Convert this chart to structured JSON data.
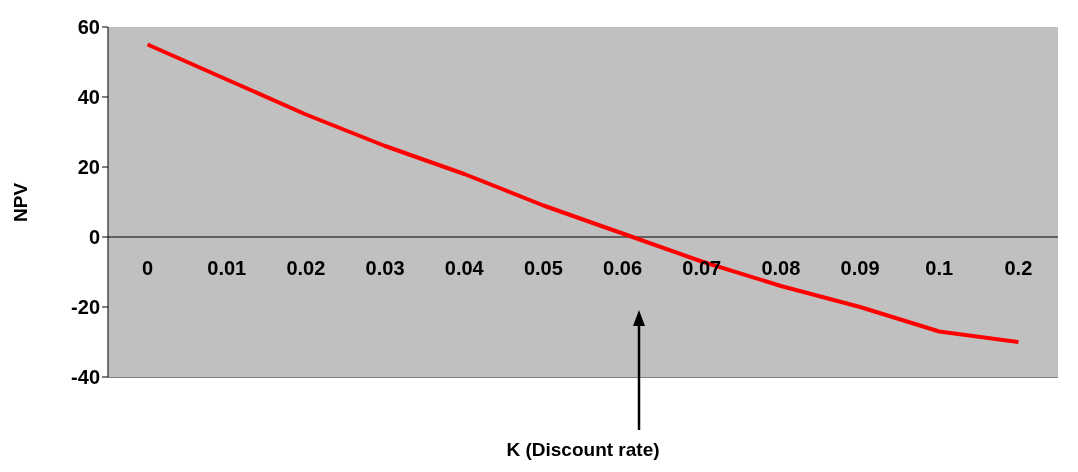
{
  "chart_data": {
    "type": "line",
    "xlabel": "K (Discount rate)",
    "ylabel": "NPV",
    "categories": [
      "0",
      "0.01",
      "0.02",
      "0.03",
      "0.04",
      "0.05",
      "0.06",
      "0.07",
      "0.08",
      "0.09",
      "0.1",
      "0.2"
    ],
    "series": [
      {
        "color": "#ff0000",
        "values": [
          55,
          45,
          35,
          26,
          18,
          9,
          1,
          -7,
          -14,
          -20,
          -27,
          -30
        ]
      }
    ],
    "ylim": [
      -40,
      60
    ],
    "yticks": [
      -40,
      -20,
      0,
      20,
      40,
      60
    ],
    "marker": "none",
    "line_style": "solid"
  }
}
